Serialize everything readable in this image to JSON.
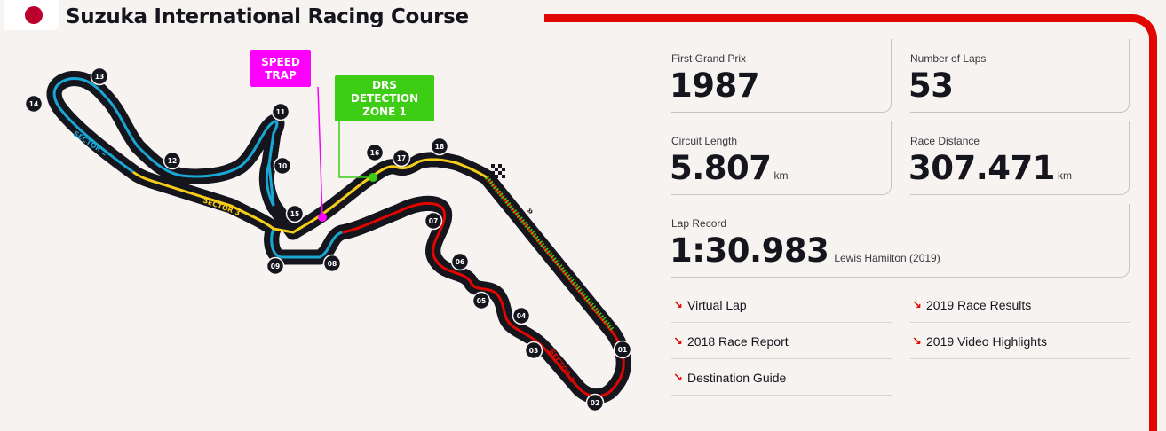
{
  "header": {
    "title": "Suzuka International Racing Course",
    "flag_icon": "japan-flag-icon"
  },
  "map": {
    "speed_trap": [
      "SPEED",
      "TRAP"
    ],
    "drs": [
      "DRS",
      "DETECTION",
      "ZONE 1"
    ],
    "sectors": [
      "SECTOR 1",
      "SECTOR 2",
      "SECTOR 3"
    ],
    "turns": [
      "01",
      "02",
      "03",
      "04",
      "05",
      "06",
      "07",
      "08",
      "09",
      "10",
      "11",
      "12",
      "13",
      "14",
      "15",
      "16",
      "17",
      "18"
    ],
    "colors": {
      "sector1": "#e10600",
      "sector2": "#19a8d4",
      "sector3": "#f5cd19",
      "speed_trap": "#ff00ff",
      "drs": "#3dcd14",
      "track": "#15151e"
    }
  },
  "stats": {
    "first_gp": {
      "label": "First Grand Prix",
      "value": "1987"
    },
    "laps": {
      "label": "Number of Laps",
      "value": "53"
    },
    "length": {
      "label": "Circuit Length",
      "value": "5.807",
      "unit": "km"
    },
    "distance": {
      "label": "Race Distance",
      "value": "307.471",
      "unit": "km"
    },
    "lap_record": {
      "label": "Lap Record",
      "value": "1:30.983",
      "holder": "Lewis Hamilton (2019)"
    }
  },
  "links": {
    "virtual_lap": "Virtual Lap",
    "race_results": "2019 Race Results",
    "race_report": "2018 Race Report",
    "video_highlights": "2019 Video Highlights",
    "destination_guide": "Destination Guide",
    "arrow": "↘"
  }
}
